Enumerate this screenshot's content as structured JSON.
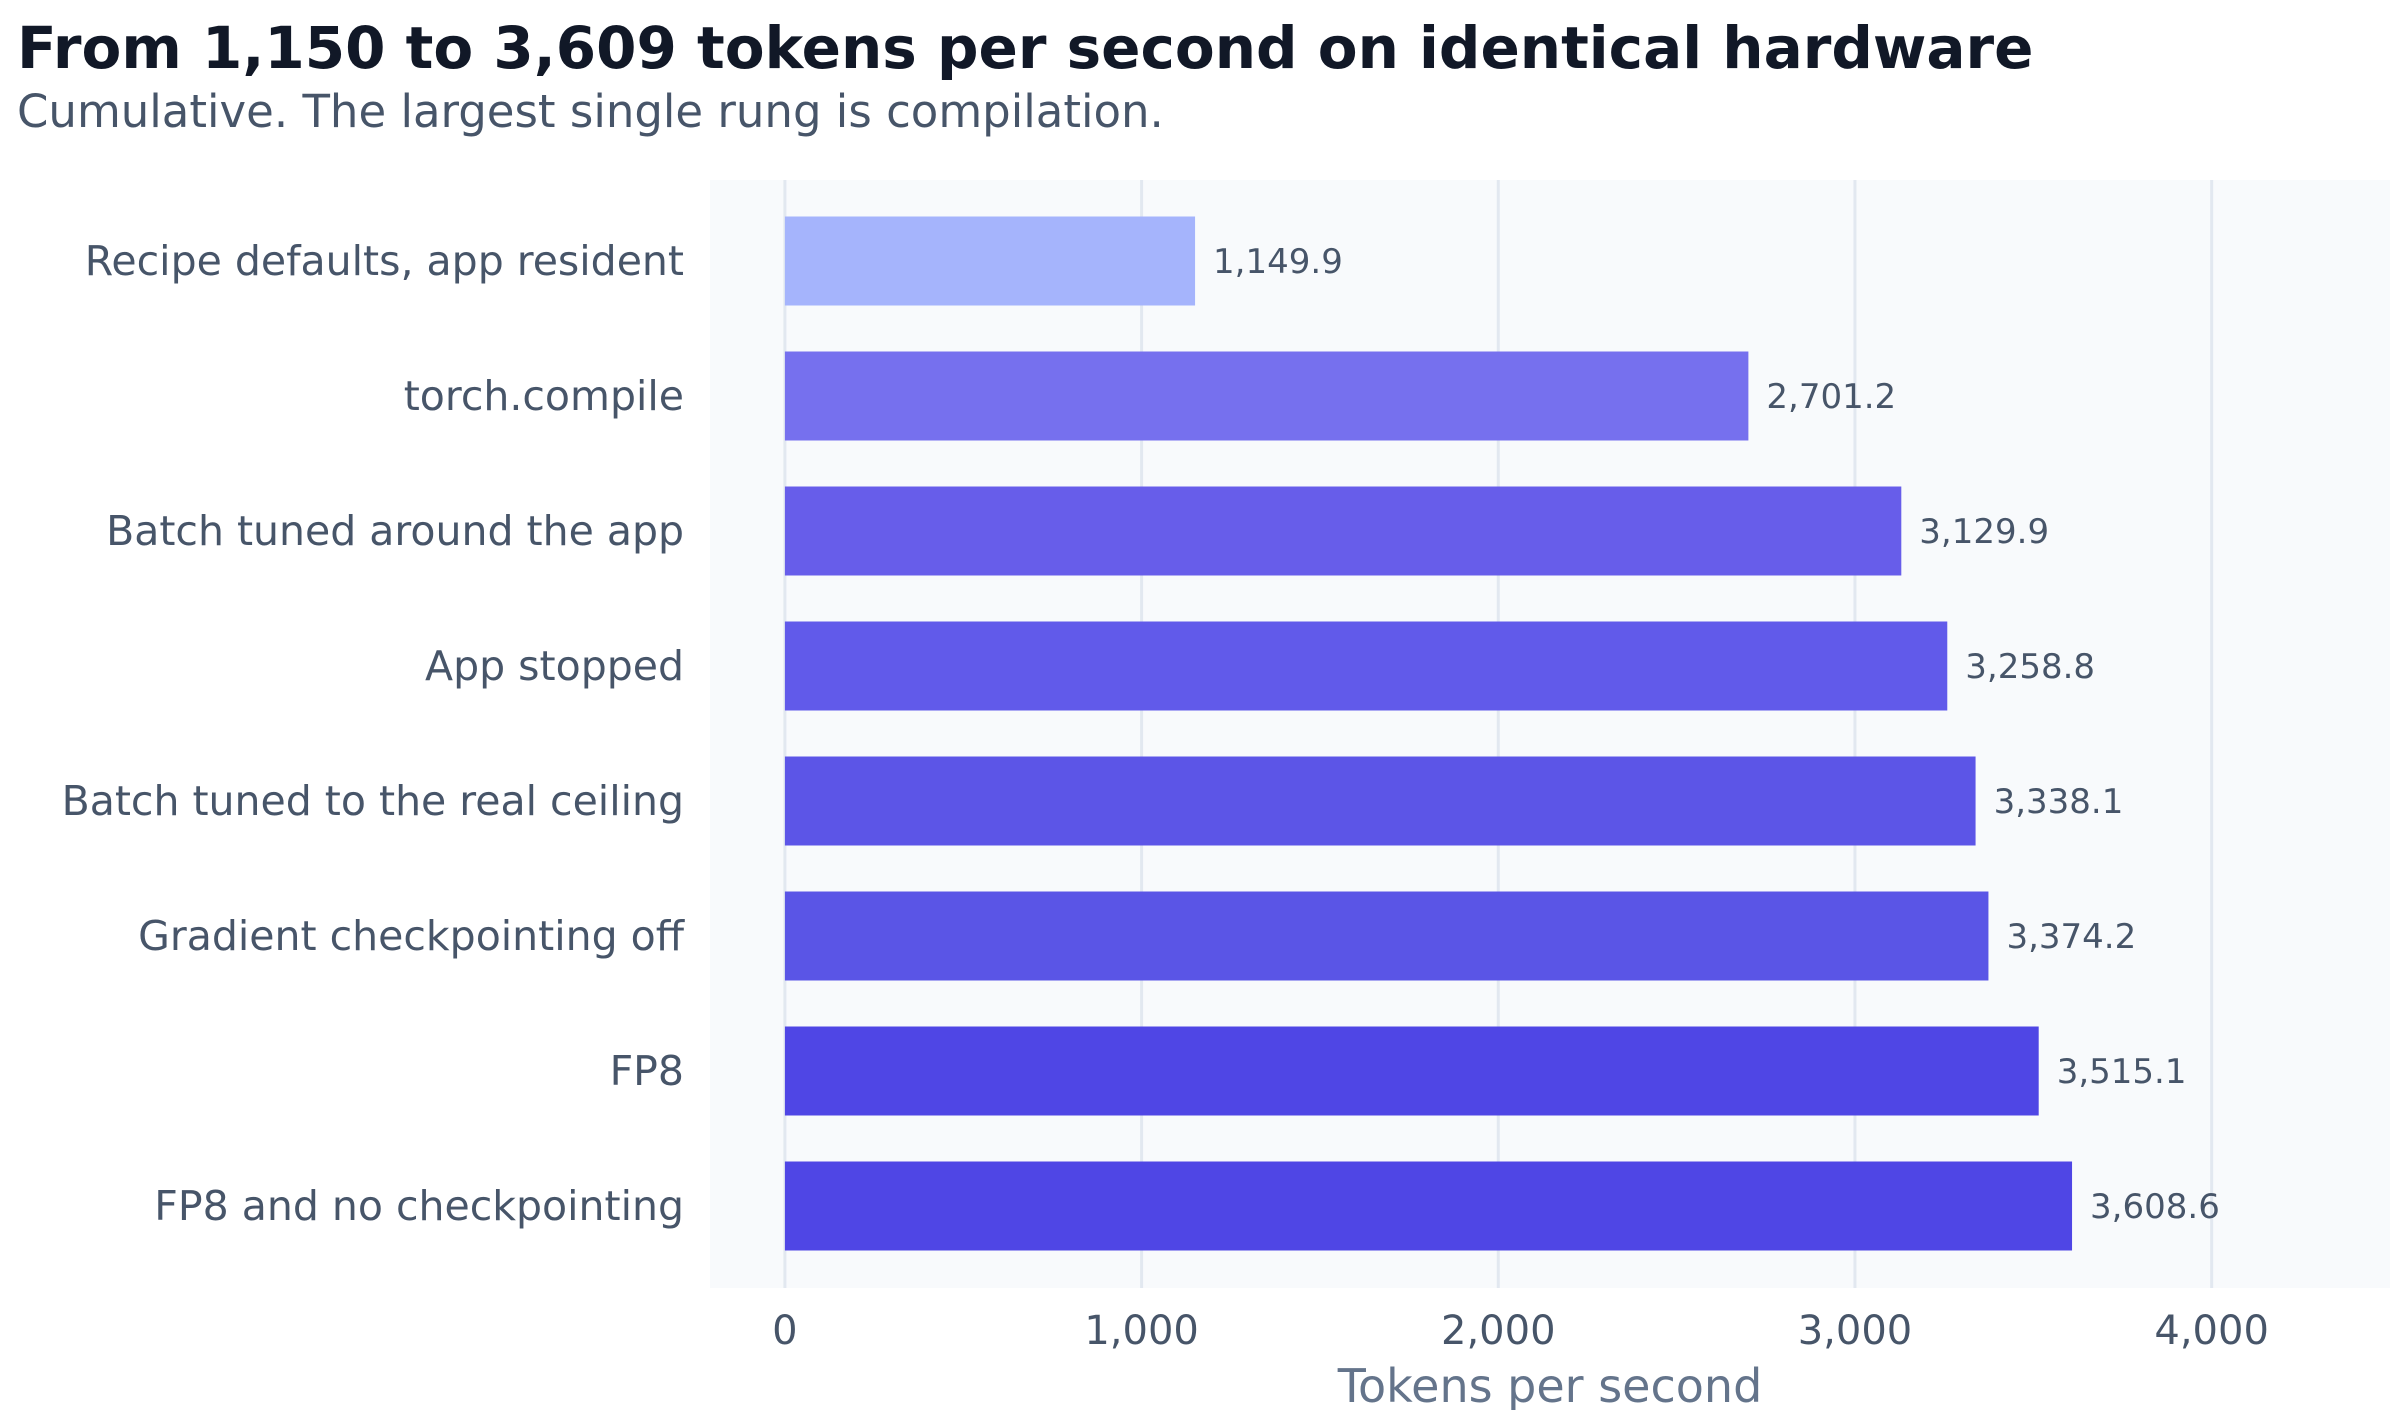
{
  "chart_data": {
    "type": "bar",
    "orientation": "horizontal",
    "title": "From 1,150 to 3,609 tokens per second on identical hardware",
    "subtitle": "Cumulative. The largest single rung is compilation.",
    "xlabel": "Tokens per second",
    "ylabel": "",
    "xlim": [
      -210,
      4500
    ],
    "xticks": [
      0,
      1000,
      2000,
      3000,
      4000
    ],
    "xtick_labels": [
      "0",
      "1,000",
      "2,000",
      "3,000",
      "4,000"
    ],
    "grid": "vertical",
    "legend": "none",
    "categories": [
      "Recipe defaults, app resident",
      "torch.compile",
      "Batch tuned around the app",
      "App stopped",
      "Batch tuned to the real ceiling",
      "Gradient checkpointing off",
      "FP8",
      "FP8 and no checkpointing"
    ],
    "values": [
      1149.9,
      2701.2,
      3129.9,
      3258.8,
      3338.1,
      3374.2,
      3515.1,
      3608.6
    ],
    "value_labels": [
      "1,149.9",
      "2,701.2",
      "3,129.9",
      "3,258.8",
      "3,338.1",
      "3,374.2",
      "3,515.1",
      "3,608.6"
    ],
    "bar_colors": [
      "#a5b4fc",
      "#7670ee",
      "#675dea",
      "#615aea",
      "#5c55e7",
      "#5a55e6",
      "#4f46e5",
      "#4f46e5"
    ]
  },
  "colors": {
    "plot_background": "#f8fafc",
    "gridline": "#e2e8f0",
    "title": "#111827",
    "label": "#475569",
    "axis_title": "#64748b"
  }
}
